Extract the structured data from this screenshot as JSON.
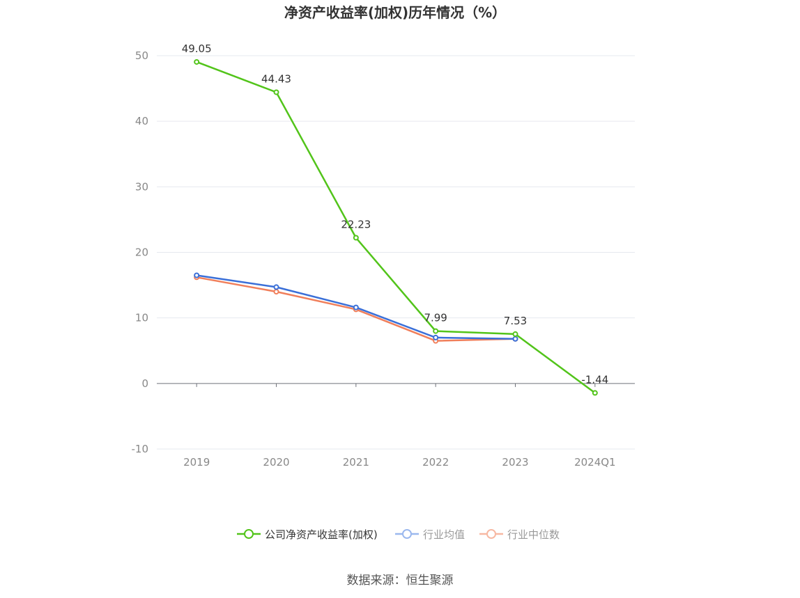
{
  "chart_data": {
    "type": "line",
    "title": "净资产收益率(加权)历年情况（%）",
    "categories": [
      "2019",
      "2020",
      "2021",
      "2022",
      "2023",
      "2024Q1"
    ],
    "ylim": [
      -10,
      50
    ],
    "yticks": [
      -10,
      0,
      10,
      20,
      30,
      40,
      50
    ],
    "grid": true,
    "legend_position": "bottom",
    "series": [
      {
        "name": "公司净资产收益率(加权)",
        "color": "#52c41a",
        "values": [
          49.05,
          44.43,
          22.23,
          7.99,
          7.53,
          -1.44
        ],
        "labels": [
          "49.05",
          "44.43",
          "22.23",
          "7.99",
          "7.53",
          "-1.44"
        ]
      },
      {
        "name": "行业均值",
        "color": "#3a6fd8",
        "values": [
          16.5,
          14.7,
          11.6,
          7.0,
          6.8,
          null
        ]
      },
      {
        "name": "行业中位数",
        "color": "#f07f5b",
        "values": [
          16.2,
          14.0,
          11.3,
          6.5,
          6.8,
          null
        ]
      }
    ]
  },
  "legend": {
    "items": [
      {
        "label": "公司净资产收益率(加权)",
        "color": "#52c41a",
        "text_color": "#333333"
      },
      {
        "label": "行业均值",
        "color": "#9bb8ee",
        "text_color": "#999999"
      },
      {
        "label": "行业中位数",
        "color": "#f7b8a2",
        "text_color": "#999999"
      }
    ]
  },
  "source": "数据来源：恒生聚源"
}
